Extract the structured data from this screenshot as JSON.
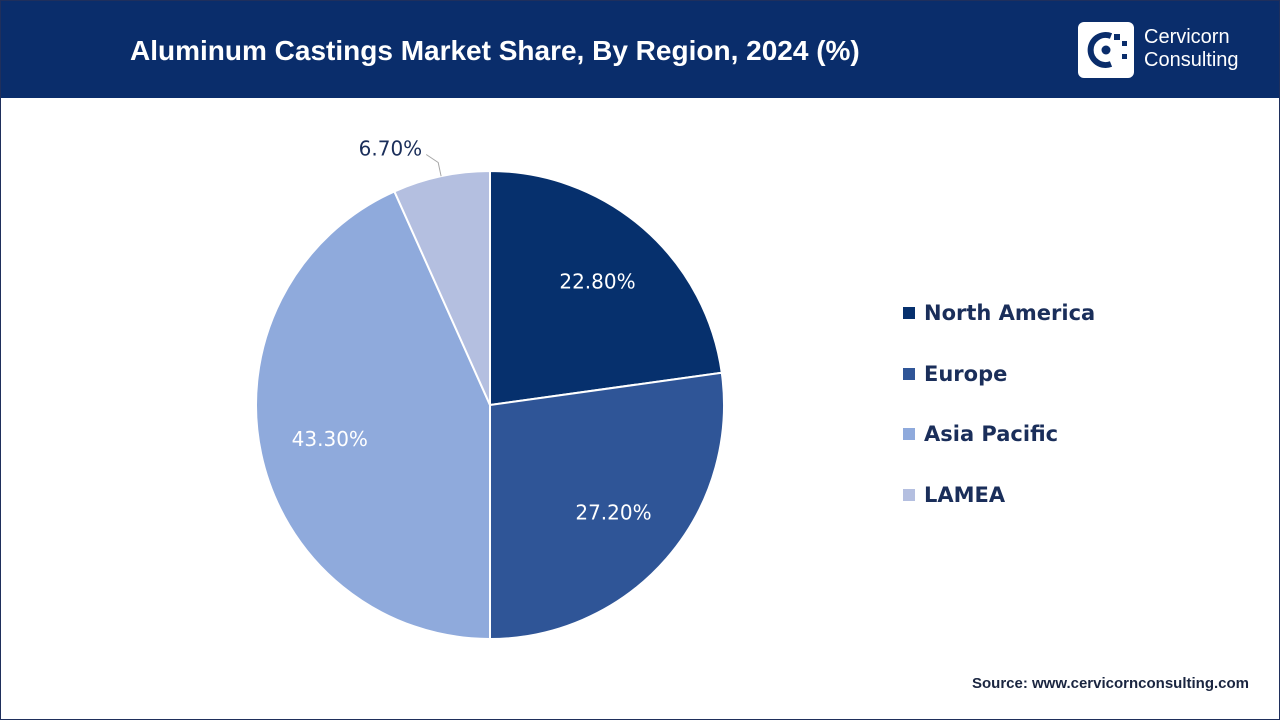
{
  "header": {
    "title": "Aluminum Castings Market Share, By Region, 2024 (%)",
    "background": "#0a2d6b"
  },
  "logo": {
    "line1": "Cervicorn",
    "line2": "Consulting",
    "icon": "cervicorn-logo-icon"
  },
  "chart_data": {
    "type": "pie",
    "title": "Aluminum Castings Market Share, By Region, 2024 (%)",
    "series": [
      {
        "name": "North America",
        "value": 22.8,
        "label": "22.80%",
        "color": "#06306d",
        "label_color": "#ffffff"
      },
      {
        "name": "Europe",
        "value": 27.2,
        "label": "27.20%",
        "color": "#2f5597",
        "label_color": "#ffffff"
      },
      {
        "name": "Asia Pacific",
        "value": 43.3,
        "label": "43.30%",
        "color": "#8faadc",
        "label_color": "#ffffff"
      },
      {
        "name": "LAMEA",
        "value": 6.7,
        "label": "6.70%",
        "color": "#b4bfe0",
        "label_color": "#1a2e5a"
      }
    ],
    "start_angle": "12 o'clock",
    "direction": "clockwise",
    "legend_position": "right"
  },
  "source": "Source: www.cervicornconsulting.com"
}
